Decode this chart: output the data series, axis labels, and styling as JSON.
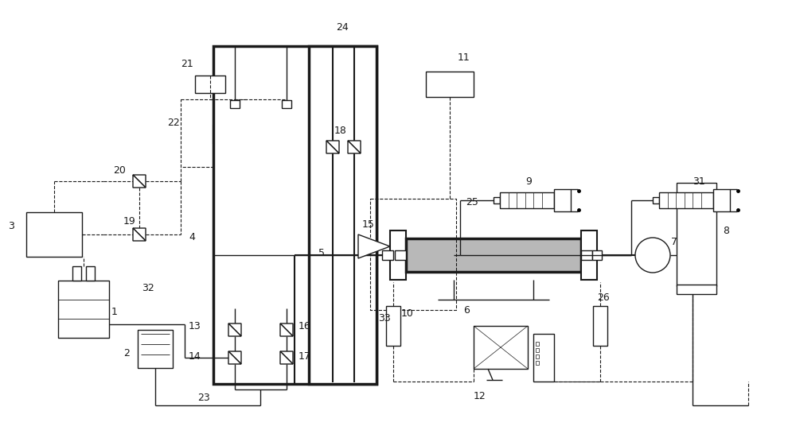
{
  "bg_color": "#ffffff",
  "lc": "#1a1a1a",
  "fig_w": 10.0,
  "fig_h": 5.41
}
